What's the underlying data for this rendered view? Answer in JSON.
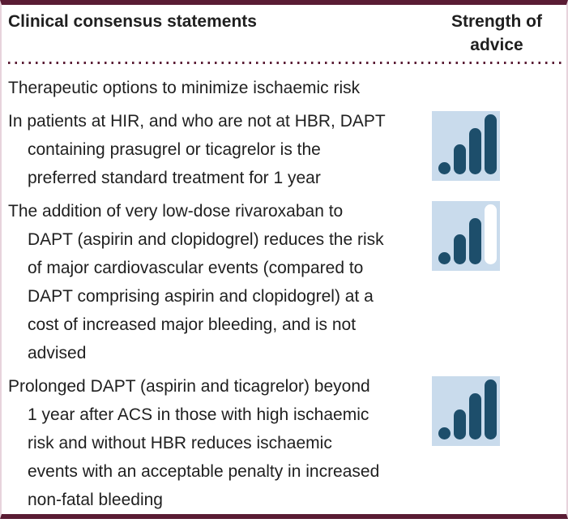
{
  "table": {
    "header": {
      "statements_label": "Clinical consensus statements",
      "strength_label": "Strength of advice"
    },
    "section_heading": "Therapeutic options to minimize ischaemic risk",
    "rows": [
      {
        "lines": [
          "In patients at HIR, and who are not at HBR, DAPT",
          "containing prasugrel or ticagrelor is the",
          "preferred standard treatment for 1 year"
        ],
        "strength": {
          "filled": 4,
          "total": 4
        }
      },
      {
        "lines": [
          "The addition of very low-dose rivaroxaban to",
          "DAPT (aspirin and clopidogrel) reduces the risk",
          "of major cardiovascular events (compared to",
          "DAPT comprising aspirin and clopidogrel) at a",
          "cost of increased major bleeding, and is not",
          "advised"
        ],
        "strength": {
          "filled": 3,
          "total": 4
        }
      },
      {
        "lines": [
          "Prolonged DAPT (aspirin and ticagrelor) beyond",
          "1 year after ACS in those with high ischaemic",
          "risk and without HBR reduces ischaemic",
          "events with an acceptable penalty in increased",
          "non-fatal bleeding"
        ],
        "strength": {
          "filled": 4,
          "total": 4
        }
      }
    ],
    "colors": {
      "accent_maroon": "#5a1c34",
      "side_border": "#e7d3dc",
      "text": "#1f1f1f",
      "icon_bg": "#c9dbec",
      "icon_bar_filled": "#1d4e6b",
      "icon_bar_empty": "#ffffff"
    }
  }
}
